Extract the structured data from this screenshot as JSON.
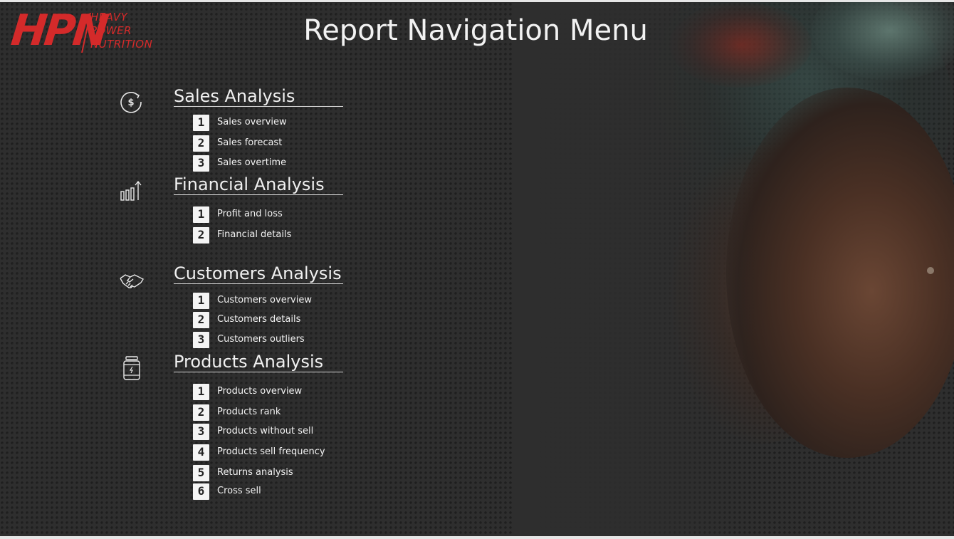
{
  "logo": {
    "letters": "HPN",
    "lines": [
      "HEAVY",
      "POWER",
      "NUTRITION"
    ]
  },
  "page": {
    "title": "Report Navigation Menu"
  },
  "colors": {
    "background": "#2e2e2e",
    "logo_red": "#d42a2a",
    "text": "#f2f2f2",
    "number_badge": "#f4f4f4"
  },
  "sections": [
    {
      "icon": "dollar-refresh-icon",
      "title": "Sales Analysis",
      "items": [
        {
          "number": "1",
          "label": "Sales overview"
        },
        {
          "number": "2",
          "label": "Sales forecast"
        },
        {
          "number": "3",
          "label": "Sales overtime"
        }
      ]
    },
    {
      "icon": "bar-chart-arrow-icon",
      "title": "Financial Analysis",
      "items": [
        {
          "number": "1",
          "label": "Profit and loss"
        },
        {
          "number": "2",
          "label": "Financial details"
        }
      ]
    },
    {
      "icon": "handshake-icon",
      "title": "Customers Analysis",
      "items": [
        {
          "number": "1",
          "label": "Customers overview"
        },
        {
          "number": "2",
          "label": "Customers details"
        },
        {
          "number": "3",
          "label": "Customers outliers"
        }
      ]
    },
    {
      "icon": "supplement-jar-icon",
      "title": "Products Analysis",
      "items": [
        {
          "number": "1",
          "label": "Products overview"
        },
        {
          "number": "2",
          "label": "Products rank"
        },
        {
          "number": "3",
          "label": "Products without sell"
        },
        {
          "number": "4",
          "label": "Products sell frequency"
        },
        {
          "number": "5",
          "label": "Returns analysis"
        },
        {
          "number": "6",
          "label": "Cross sell"
        }
      ]
    }
  ]
}
